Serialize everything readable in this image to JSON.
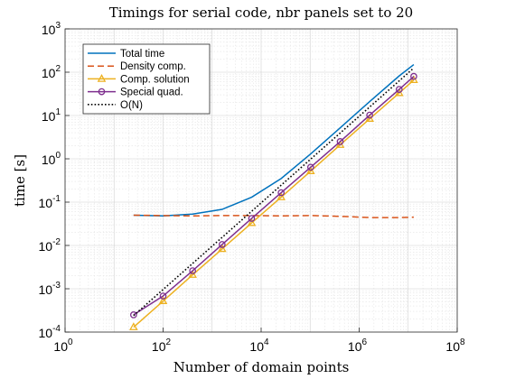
{
  "chart_data": {
    "type": "line",
    "title": "Timings for serial code, nbr panels set to 20",
    "xlabel": "Number of domain points",
    "ylabel": "time [s]",
    "xscale": "log",
    "yscale": "log",
    "xlim": [
      1,
      100000000
    ],
    "ylim": [
      0.0001,
      1000
    ],
    "grid": true,
    "legend_position": "top-left",
    "x_ticks": [
      {
        "value": 1,
        "base": "10",
        "exp": "0"
      },
      {
        "value": 100,
        "base": "10",
        "exp": "2"
      },
      {
        "value": 10000,
        "base": "10",
        "exp": "4"
      },
      {
        "value": 1000000,
        "base": "10",
        "exp": "6"
      },
      {
        "value": 100000000,
        "base": "10",
        "exp": "8"
      }
    ],
    "y_ticks": [
      {
        "value": 0.0001,
        "base": "10",
        "exp": "-4"
      },
      {
        "value": 0.001,
        "base": "10",
        "exp": "-3"
      },
      {
        "value": 0.01,
        "base": "10",
        "exp": "-2"
      },
      {
        "value": 0.1,
        "base": "10",
        "exp": "-1"
      },
      {
        "value": 1,
        "base": "10",
        "exp": "0"
      },
      {
        "value": 10,
        "base": "10",
        "exp": "1"
      },
      {
        "value": 100,
        "base": "10",
        "exp": "2"
      },
      {
        "value": 1000,
        "base": "10",
        "exp": "3"
      }
    ],
    "series": [
      {
        "name": "Total time",
        "color": "#0072BD",
        "style": "solid",
        "marker": "none",
        "x": [
          25,
          100,
          400,
          1600,
          6400,
          25600,
          102400,
          409600,
          1638400,
          6553600,
          13000000
        ],
        "y": [
          0.05,
          0.048,
          0.053,
          0.068,
          0.13,
          0.35,
          1.3,
          5.2,
          21,
          82,
          150
        ]
      },
      {
        "name": "Density comp.",
        "color": "#D95319",
        "style": "dashed",
        "marker": "none",
        "x": [
          25,
          100,
          400,
          1600,
          6400,
          25600,
          102400,
          409600,
          1638400,
          6553600,
          13000000
        ],
        "y": [
          0.05,
          0.049,
          0.048,
          0.049,
          0.049,
          0.048,
          0.049,
          0.047,
          0.044,
          0.044,
          0.045
        ]
      },
      {
        "name": "Comp. solution",
        "color": "#EDB120",
        "style": "solid",
        "marker": "triangle",
        "x": [
          25,
          100,
          400,
          1600,
          6400,
          25600,
          102400,
          409600,
          1638400,
          6553600,
          13000000
        ],
        "y": [
          0.00013,
          0.00052,
          0.0021,
          0.0083,
          0.033,
          0.13,
          0.52,
          2.1,
          8.4,
          33,
          66
        ]
      },
      {
        "name": "Special quad.",
        "color": "#7E2F8E",
        "style": "solid",
        "marker": "circle",
        "x": [
          25,
          100,
          400,
          1600,
          6400,
          25600,
          102400,
          409600,
          1638400,
          6553600,
          13000000
        ],
        "y": [
          0.00025,
          0.00068,
          0.0026,
          0.0105,
          0.042,
          0.165,
          0.64,
          2.5,
          10.2,
          40,
          80
        ]
      },
      {
        "name": "O(N)",
        "color": "#000000",
        "style": "dotted",
        "marker": "none",
        "x": [
          25,
          13000000
        ],
        "y": [
          0.00024,
          125
        ]
      }
    ]
  }
}
